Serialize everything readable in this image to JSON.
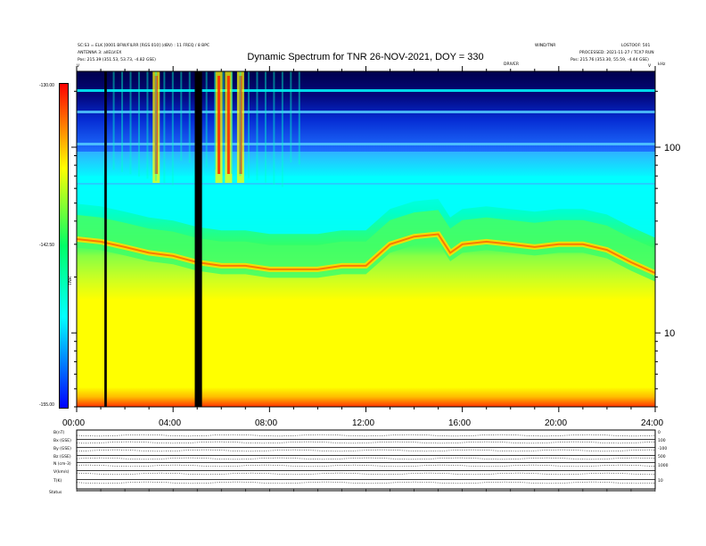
{
  "header": {
    "title": "Dynamic Spectrum for TNR 26-NOV-2021, DOY = 330",
    "left_line1": "SC:S3 = ELK [0001 BFW/FILRR [RGS 010] (dBV) : 11 FREQ / 8 BPC",
    "left_line2": "ANTENNA 3: allELV:EX",
    "left_line3": "Pos:    215.39 (351.53, 53.73, -4.82 GSE)",
    "right_line1": "WIND/TNR",
    "right_line1b": "LOSTOOF: 501",
    "right_line2": "PROCESSED: 2021-11-27 / TCX7 RUN",
    "right_line3": "Pos:    215.76 (353.30, 55.59, -4.44 GSE)",
    "panel_center_label": "DRIVER",
    "panel_left_v": "V",
    "panel_right_v": "V",
    "panel_right_khz": "kHz"
  },
  "colorbar": {
    "ticks": [
      "-130.00",
      "-142.50",
      "-155.00"
    ],
    "unit_label": "TNR"
  },
  "bottom": {
    "labels": [
      "B(nT)",
      "Bx (GSE)",
      "By (GSE)",
      "Bz (GSE)",
      "N (cm-3)",
      "V(km/s)",
      "T(K)",
      "Status"
    ],
    "right_ticks": [
      "0",
      "100",
      "-100",
      "500",
      "1000",
      "10"
    ],
    "x_ticks": [
      "00:00",
      "04:00",
      "08:00",
      "12:00",
      "16:00",
      "20:00",
      "24:00"
    ]
  },
  "chart_data": {
    "type": "heatmap",
    "title": "Dynamic Spectrum for TNR 26-NOV-2021, DOY = 330",
    "xlabel": "",
    "ylabel": "",
    "x_ticks": [
      "00:00",
      "04:00",
      "08:00",
      "12:00",
      "16:00",
      "20:00",
      "24:00"
    ],
    "x_range_hours": [
      0,
      24
    ],
    "y_scale": "log",
    "y_unit": "kHz",
    "y_ticks": [
      10,
      100
    ],
    "y_range_khz": [
      4,
      256
    ],
    "colorbar_range_dBV": [
      -155.0,
      -130.0
    ],
    "colorbar_ticks_dBV": [
      -130.0,
      -142.5,
      -155.0
    ],
    "colormap": [
      "#ff0000",
      "#ffff00",
      "#00ff66",
      "#00ffff",
      "#0000ff",
      "#000000"
    ],
    "plasma_line_khz": [
      [
        0,
        32
      ],
      [
        1,
        31
      ],
      [
        2,
        29
      ],
      [
        3,
        27
      ],
      [
        4,
        26
      ],
      [
        5,
        24
      ],
      [
        6,
        23
      ],
      [
        7,
        23
      ],
      [
        8,
        22
      ],
      [
        9,
        22
      ],
      [
        10,
        22
      ],
      [
        11,
        23
      ],
      [
        12,
        23
      ],
      [
        13,
        30
      ],
      [
        14,
        33
      ],
      [
        15,
        34
      ],
      [
        15.5,
        27
      ],
      [
        16,
        30
      ],
      [
        17,
        31
      ],
      [
        18,
        30
      ],
      [
        19,
        29
      ],
      [
        20,
        30
      ],
      [
        21,
        30
      ],
      [
        22,
        28
      ],
      [
        23,
        24
      ],
      [
        24,
        21
      ]
    ],
    "data_gaps_hours": [
      [
        1.15,
        1.25
      ],
      [
        4.9,
        5.2
      ]
    ],
    "bursts_hours": [
      3.3,
      5.9,
      6.3,
      6.8
    ]
  }
}
